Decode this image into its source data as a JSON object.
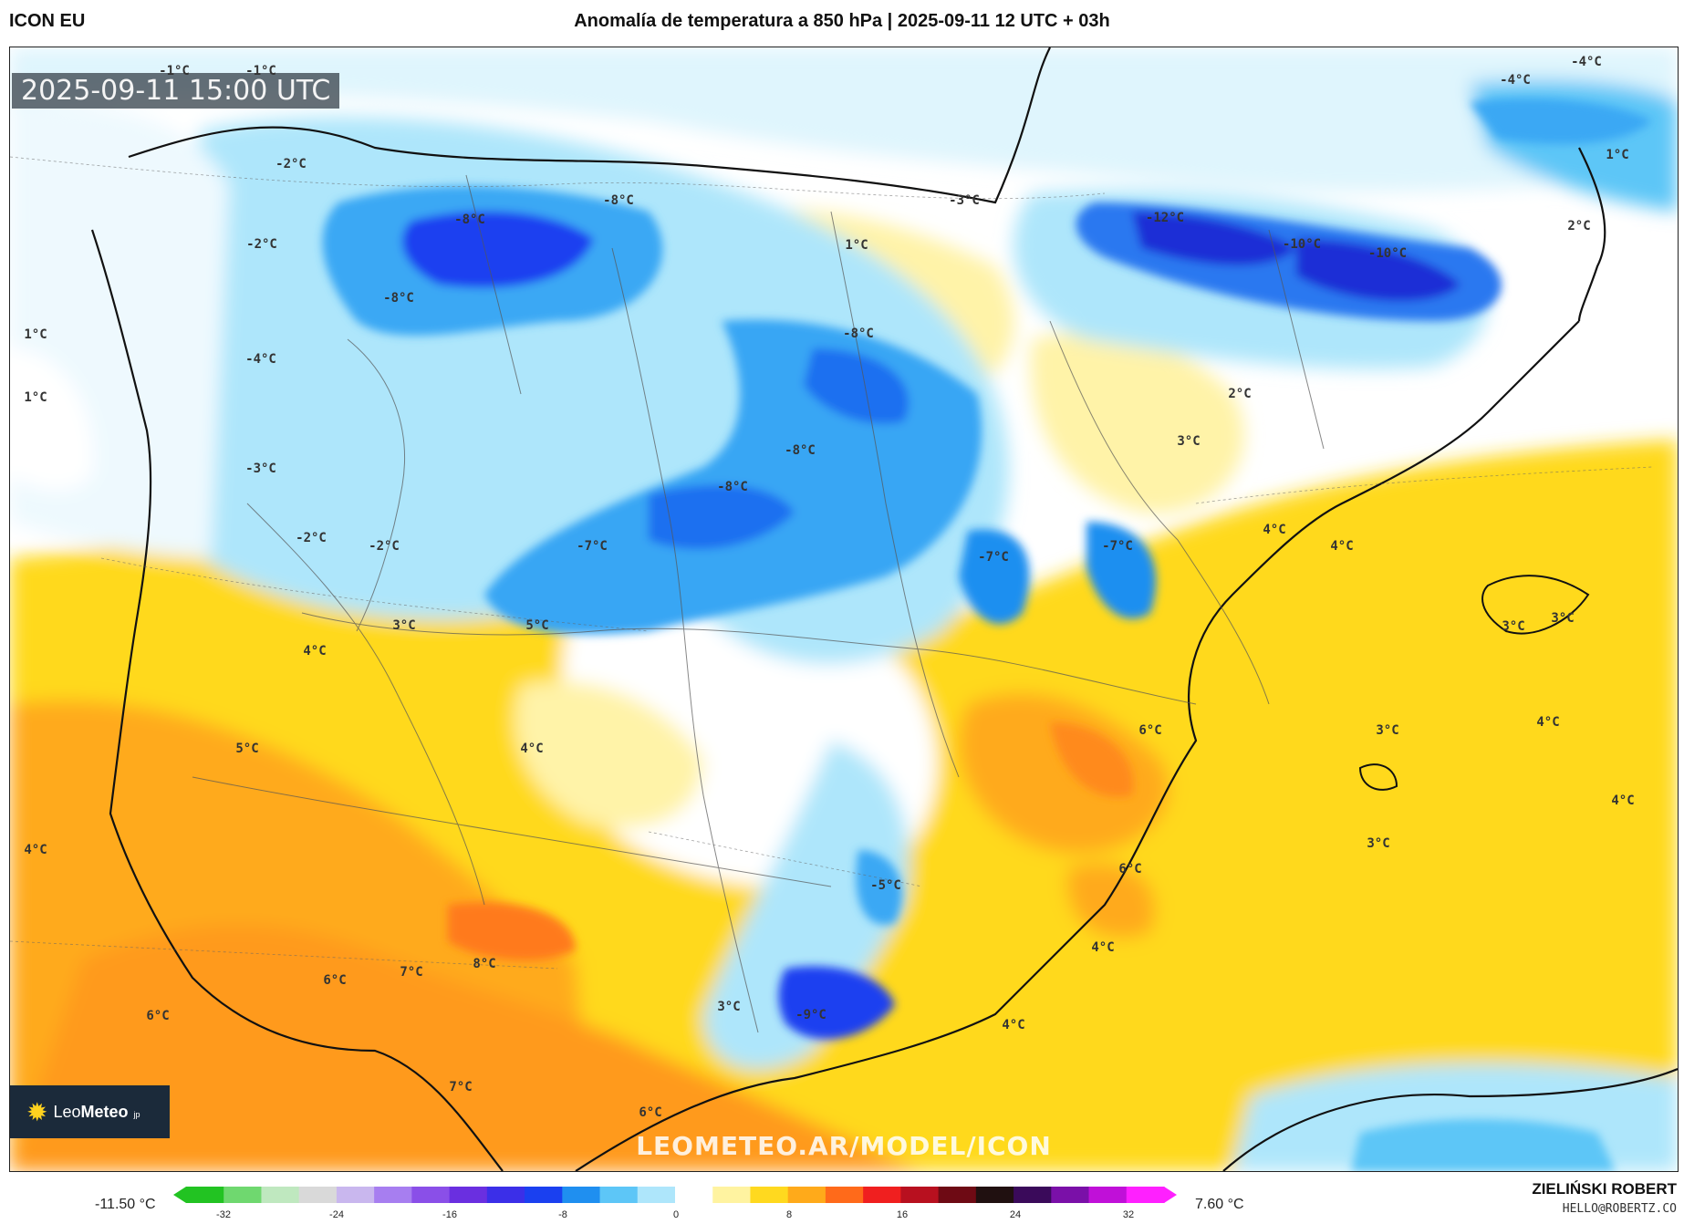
{
  "header": {
    "model": "ICON EU",
    "title": "Anomalía de temperatura a 850 hPa | 2025-09-11 12 UTC + 03h"
  },
  "map": {
    "timestamp": "2025-09-11 15:00 UTC",
    "watermark": "LEOMETEO.AR/MODEL/ICON",
    "logo": {
      "brand_a": "Leo",
      "brand_b": "Meteo",
      "suffix": "jp"
    },
    "colors": {
      "deep_blue": "#1a2fd6",
      "blue": "#1e8ff0",
      "light_blue": "#9ee2fb",
      "pale_blue": "#dff5fd",
      "pale_yellow": "#fff3a8",
      "yellow": "#ffd91f",
      "orange": "#ffaa1a",
      "dark_orange": "#ff8a1a"
    },
    "labels": [
      {
        "text": "-1°C"
      },
      {
        "text": "-1°C"
      },
      {
        "text": "-2°C"
      },
      {
        "text": "-8°C"
      },
      {
        "text": "-8°C"
      },
      {
        "text": "-2°C"
      },
      {
        "text": "-8°C"
      },
      {
        "text": "1°C"
      },
      {
        "text": "1°C"
      },
      {
        "text": "-4°C"
      },
      {
        "text": "-3°C"
      },
      {
        "text": "-2°C"
      },
      {
        "text": "-2°C"
      },
      {
        "text": "1°C"
      },
      {
        "text": "-3°C"
      },
      {
        "text": "-8°C"
      },
      {
        "text": "-8°C"
      },
      {
        "text": "-8°C"
      },
      {
        "text": "-7°C"
      },
      {
        "text": "-7°C"
      },
      {
        "text": "-7°C"
      },
      {
        "text": "-12°C"
      },
      {
        "text": "-10°C"
      },
      {
        "text": "-10°C"
      },
      {
        "text": "-4°C"
      },
      {
        "text": "-4°C"
      },
      {
        "text": "1°C"
      },
      {
        "text": "2°C"
      },
      {
        "text": "2°C"
      },
      {
        "text": "3°C"
      },
      {
        "text": "4°C"
      },
      {
        "text": "4°C"
      },
      {
        "text": "3°C"
      },
      {
        "text": "5°C"
      },
      {
        "text": "4°C"
      },
      {
        "text": "5°C"
      },
      {
        "text": "4°C"
      },
      {
        "text": "4°C"
      },
      {
        "text": "6°C"
      },
      {
        "text": "3°C"
      },
      {
        "text": "3°C"
      },
      {
        "text": "3°C"
      },
      {
        "text": "4°C"
      },
      {
        "text": "4°C"
      },
      {
        "text": "3°C"
      },
      {
        "text": "6°C"
      },
      {
        "text": "-5°C"
      },
      {
        "text": "4°C"
      },
      {
        "text": "8°C"
      },
      {
        "text": "7°C"
      },
      {
        "text": "6°C"
      },
      {
        "text": "6°C"
      },
      {
        "text": "3°C"
      },
      {
        "text": "-9°C"
      },
      {
        "text": "4°C"
      },
      {
        "text": "7°C"
      },
      {
        "text": "6°C"
      }
    ]
  },
  "colorbar": {
    "min_label": "-11.50 °C",
    "max_label": "7.60 °C",
    "ticks": [
      "-32",
      "-24",
      "-16",
      "-8",
      "0",
      "8",
      "16",
      "24",
      "32"
    ],
    "stops": [
      "#22c322",
      "#6fd86f",
      "#bfe8bf",
      "#d9d9d9",
      "#c9b7ee",
      "#a77ef0",
      "#8a4fe8",
      "#6a2fe0",
      "#3b2fe8",
      "#1a40f0",
      "#1f8ff0",
      "#5dc6f7",
      "#aee6fb",
      "#ffffff",
      "#fff3a0",
      "#ffd91f",
      "#ffaa1a",
      "#ff6a1a",
      "#f01f1f",
      "#b8101f",
      "#6e0a14",
      "#201010",
      "#3a0a5a",
      "#7a10a8",
      "#c010d8",
      "#ff20ff"
    ]
  },
  "author": {
    "name": "ZIELIŃSKI ROBERT",
    "email": "HELLO@ROBERTZ.CO"
  }
}
